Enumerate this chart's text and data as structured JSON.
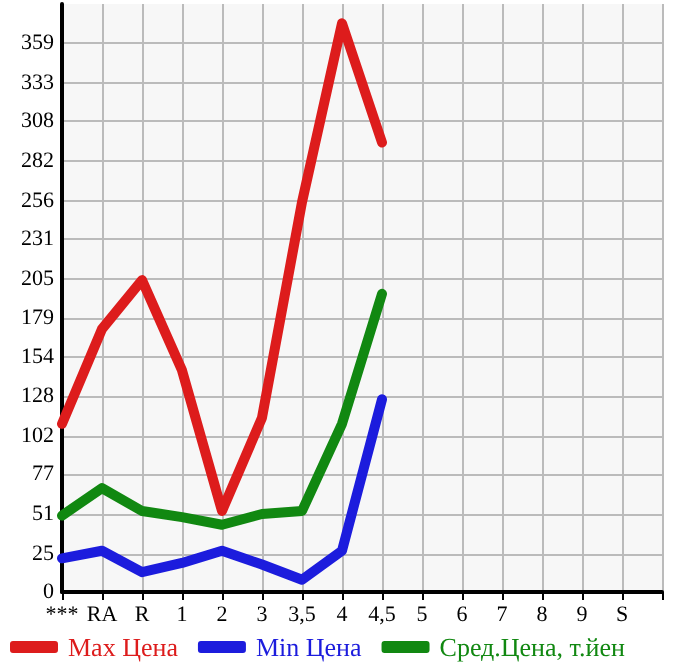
{
  "chart_data": {
    "type": "line",
    "categories": [
      "***",
      "RA",
      "R",
      "1",
      "2",
      "3",
      "3,5",
      "4",
      "4,5",
      "5",
      "6",
      "7",
      "8",
      "9",
      "S",
      null
    ],
    "series": [
      {
        "name": "Max Цена",
        "color": "#dd1c1c",
        "values": [
          110,
          172,
          204,
          145,
          53,
          114,
          255,
          372,
          294,
          null,
          null,
          null,
          null,
          null,
          null,
          null
        ]
      },
      {
        "name": "Min Цена",
        "color": "#1c1cdd",
        "values": [
          22,
          27,
          13,
          19,
          27,
          18,
          8,
          27,
          126,
          null,
          null,
          null,
          null,
          null,
          null,
          null
        ]
      },
      {
        "name": "Сред.Цена, т.йен",
        "color": "#118811",
        "values": [
          50,
          68,
          53,
          49,
          44,
          51,
          53,
          110,
          195,
          null,
          null,
          null,
          null,
          null,
          null,
          null
        ]
      }
    ],
    "ylim": [
      0,
      384.6
    ],
    "yticks": [
      0,
      25,
      51,
      77,
      102,
      128,
      154,
      179,
      205,
      231,
      256,
      282,
      308,
      333,
      359
    ],
    "grid": true,
    "legend": "bottom",
    "marker": "none",
    "line_style": "solid"
  }
}
